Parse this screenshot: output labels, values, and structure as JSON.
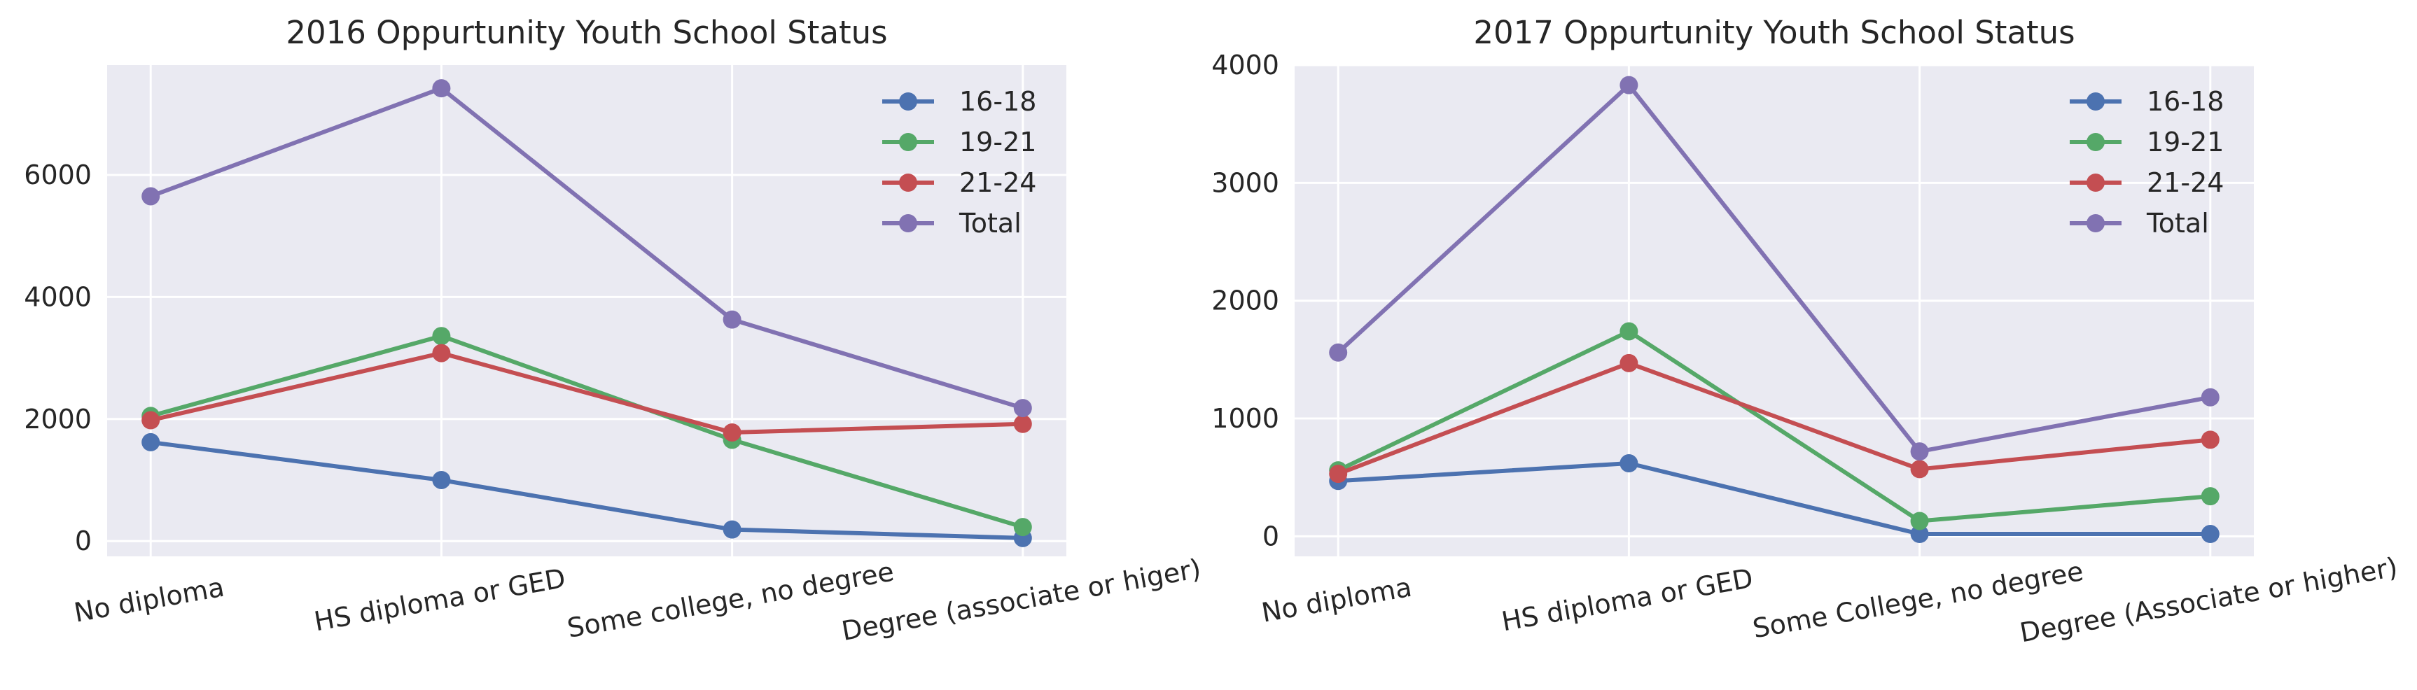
{
  "colors": {
    "plot_bg": "#EAEAF2",
    "grid": "#FFFFFF",
    "text": "#262626",
    "series": [
      "#4C72B0",
      "#55A868",
      "#C44E52",
      "#8172B2"
    ]
  },
  "chart_data": [
    {
      "type": "line",
      "title": "2016 Oppurtunity Youth School Status",
      "categories": [
        "No diploma",
        "HS diploma or GED",
        "Some college, no degree",
        "Degree (associate or higer)"
      ],
      "series": [
        {
          "name": "16-18",
          "values": [
            1620,
            1000,
            190,
            50
          ]
        },
        {
          "name": "19-21",
          "values": [
            2050,
            3360,
            1660,
            230
          ]
        },
        {
          "name": "21-24",
          "values": [
            1980,
            3080,
            1780,
            1920
          ]
        },
        {
          "name": "Total",
          "values": [
            5650,
            7420,
            3630,
            2180
          ]
        }
      ],
      "ylim": [
        -250,
        7800
      ],
      "yticks": [
        0,
        2000,
        4000,
        6000
      ],
      "grid": true,
      "legend_position": "top-right",
      "xtick_rotation_deg": -10
    },
    {
      "type": "line",
      "title": "2017 Oppurtunity Youth School Status",
      "categories": [
        "No diploma",
        "HS diploma or GED",
        "Some College, no degree",
        "Degree (Associate or higher)"
      ],
      "series": [
        {
          "name": "16-18",
          "values": [
            470,
            620,
            20,
            20
          ]
        },
        {
          "name": "19-21",
          "values": [
            560,
            1740,
            130,
            340
          ]
        },
        {
          "name": "21-24",
          "values": [
            530,
            1470,
            570,
            820
          ]
        },
        {
          "name": "Total",
          "values": [
            1560,
            3830,
            720,
            1180
          ]
        }
      ],
      "ylim": [
        -170,
        4000
      ],
      "yticks": [
        0,
        1000,
        2000,
        3000,
        4000
      ],
      "grid": true,
      "legend_position": "top-right",
      "xtick_rotation_deg": -10
    }
  ]
}
